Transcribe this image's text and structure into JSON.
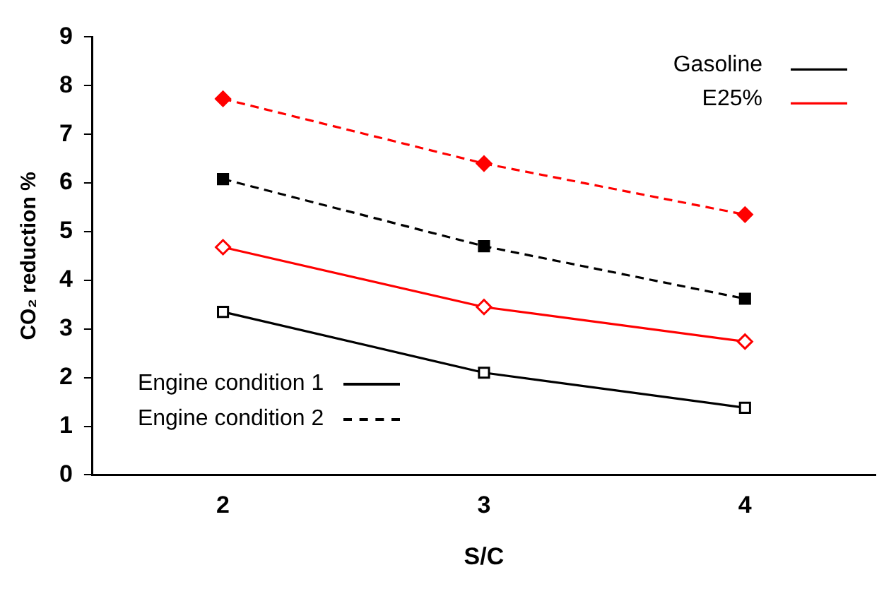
{
  "chart_data": {
    "type": "line",
    "xlabel": "S/C",
    "ylabel": "CO₂ reduction %",
    "categories": [
      "2",
      "3",
      "4"
    ],
    "ylim": [
      0,
      9
    ],
    "yticks": [
      0,
      1,
      2,
      3,
      4,
      5,
      6,
      7,
      8,
      9
    ],
    "grid": false,
    "legend": "top right",
    "series": [
      {
        "name": "Gasoline",
        "color": "#000000",
        "values": [
          3.35,
          2.1,
          1.38
        ],
        "marker": "square",
        "line_style": "solid"
      },
      {
        "name": "E25%",
        "color": "#ff0000",
        "values": [
          4.68,
          3.45,
          2.74
        ],
        "marker": "diamond",
        "line_style": "solid"
      },
      {
        "color": "#000000",
        "values": [
          6.08,
          4.7,
          3.62
        ],
        "marker": "square",
        "line_style": "dashed"
      },
      {
        "color": "#ff0000",
        "values": [
          7.73,
          6.4,
          5.35
        ],
        "marker": "diamond",
        "line_style": "dashed"
      }
    ],
    "annotations": [
      "Engine condition 1",
      "Engine condition 2"
    ]
  }
}
